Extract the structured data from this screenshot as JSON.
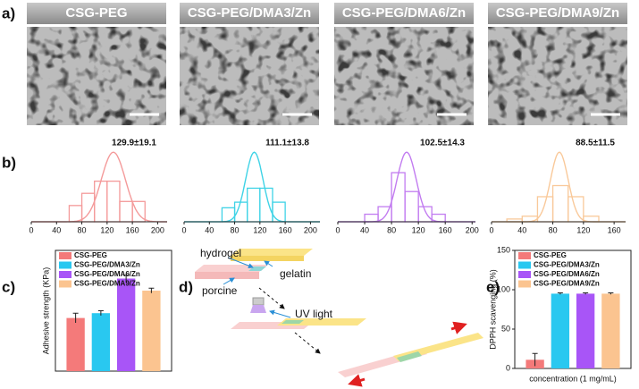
{
  "panel_labels": [
    "a)",
    "b)",
    "c)",
    "d)",
    "e)"
  ],
  "sem_labels": [
    "CSG-PEG",
    "CSG-PEG/DMA3/Zn",
    "CSG-PEG/DMA6/Zn",
    "CSG-PEG/DMA9/Zn"
  ],
  "diagram": {
    "labels": [
      "hydrogel",
      "gelatin",
      "porcine",
      "UV light"
    ]
  },
  "chart_data": [
    {
      "type": "histogram",
      "annotation": "129.9±19.1",
      "color": "#f49a9a",
      "bins": [
        60,
        80,
        100,
        120,
        140,
        160,
        180
      ],
      "values": [
        4,
        7,
        10,
        10,
        5,
        5
      ],
      "fit": {
        "mean": 129.9,
        "sd": 19.1
      },
      "xlim": [
        0,
        215
      ],
      "xticks": [
        0,
        40,
        80,
        120,
        160,
        200
      ]
    },
    {
      "type": "histogram",
      "annotation": "111.1±13.8",
      "color": "#3fd3e6",
      "bins": [
        60,
        80,
        100,
        120,
        140,
        160
      ],
      "values": [
        5,
        7,
        12,
        12,
        7
      ],
      "fit": {
        "mean": 111.1,
        "sd": 13.8
      },
      "xlim": [
        0,
        215
      ],
      "xticks": [
        0,
        40,
        80,
        120,
        160,
        200
      ]
    },
    {
      "type": "histogram",
      "annotation": "102.5±14.3",
      "color": "#c27cf0",
      "bins": [
        40,
        60,
        80,
        100,
        120,
        140,
        160
      ],
      "values": [
        2,
        4,
        13,
        8,
        4,
        2
      ],
      "fit": {
        "mean": 102.5,
        "sd": 14.3
      },
      "xlim": [
        0,
        205
      ],
      "xticks": [
        0,
        40,
        80,
        120,
        160,
        200
      ]
    },
    {
      "type": "histogram",
      "annotation": "88.5±11.5",
      "color": "#f9c99a",
      "bins": [
        20,
        40,
        60,
        80,
        100,
        120,
        140
      ],
      "values": [
        1,
        2,
        9,
        13,
        9,
        2
      ],
      "fit": {
        "mean": 88.5,
        "sd": 11.5
      },
      "xlim": [
        0,
        175
      ],
      "xticks": [
        0,
        40,
        80,
        120,
        160
      ]
    },
    {
      "type": "bar",
      "y_label": "Adhesive strength (KPa)",
      "ylim": [
        0,
        15
      ],
      "series": [
        {
          "name": "CSG-PEG",
          "color": "#f47a7a",
          "values": [
            6.6
          ],
          "errors": [
            0.6
          ]
        },
        {
          "name": "CSG-PEG/DMA3/Zn",
          "color": "#29c8f0",
          "values": [
            7.2
          ],
          "errors": [
            0.3
          ]
        },
        {
          "name": "CSG-PEG/DMA6/Zn",
          "color": "#a855f7",
          "values": [
            11.5
          ],
          "errors": [
            0.4
          ]
        },
        {
          "name": "CSG-PEG/DMA9/Zn",
          "color": "#fbc490",
          "values": [
            10.0
          ],
          "errors": [
            0.3
          ]
        }
      ]
    },
    {
      "type": "bar",
      "y_label": "DPPH scavenging (%)",
      "x_label": "concentration (1 mg/mL)",
      "ylim": [
        0,
        150
      ],
      "yticks": [
        0,
        50,
        100,
        150
      ],
      "series": [
        {
          "name": "CSG-PEG",
          "color": "#f47a7a",
          "values": [
            11
          ],
          "errors": [
            8
          ]
        },
        {
          "name": "CSG-PEG/DMA3/Zn",
          "color": "#29c8f0",
          "values": [
            95
          ],
          "errors": [
            1
          ]
        },
        {
          "name": "CSG-PEG/DMA6/Zn",
          "color": "#a855f7",
          "values": [
            95
          ],
          "errors": [
            1
          ]
        },
        {
          "name": "CSG-PEG/DMA9/Zn",
          "color": "#fbc490",
          "values": [
            95
          ],
          "errors": [
            1
          ]
        }
      ]
    }
  ]
}
